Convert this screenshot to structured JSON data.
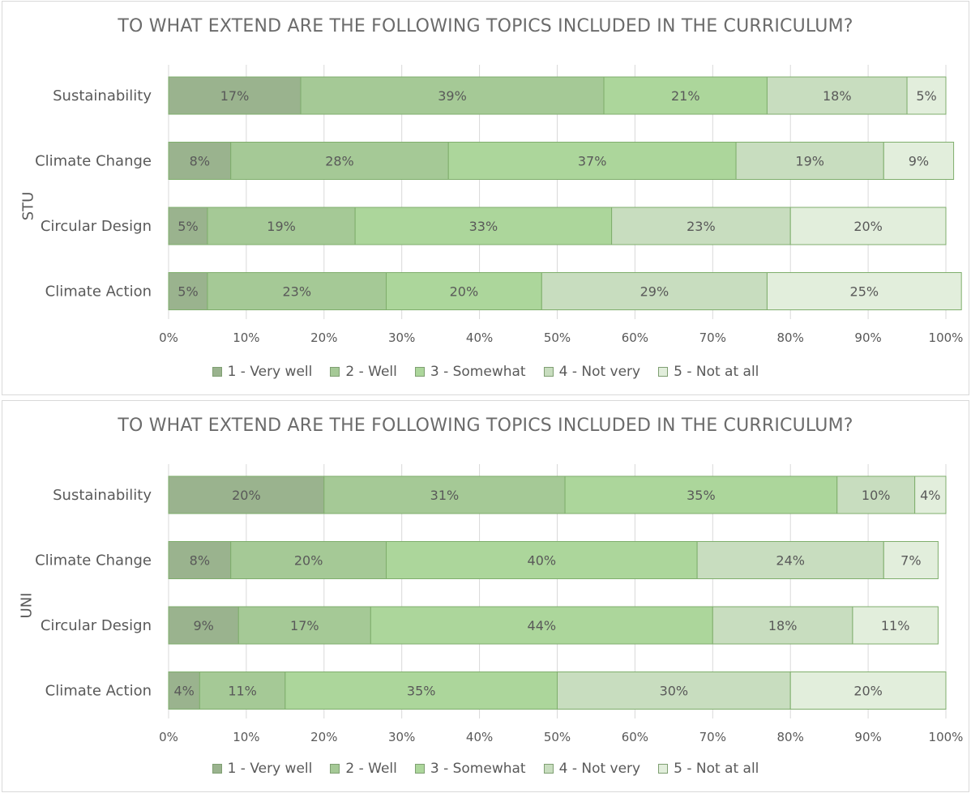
{
  "colors": [
    "#9ab38e",
    "#a5c996",
    "#acd69b",
    "#c8ddbf",
    "#e2eedc"
  ],
  "chart_data": [
    {
      "type": "bar",
      "orientation": "horizontal",
      "stacked": true,
      "title": "TO WHAT EXTEND ARE THE FOLLOWING TOPICS INCLUDED IN THE CURRICULUM?",
      "group_label": "STU",
      "categories": [
        "Sustainability",
        "Climate Change",
        "Circular Design",
        "Climate Action"
      ],
      "series": [
        {
          "name": "1 - Very well",
          "values": [
            17,
            8,
            5,
            5
          ]
        },
        {
          "name": "2 - Well",
          "values": [
            39,
            28,
            19,
            23
          ]
        },
        {
          "name": "3 - Somewhat",
          "values": [
            21,
            37,
            33,
            20
          ]
        },
        {
          "name": "4 - Not very",
          "values": [
            18,
            19,
            23,
            29
          ]
        },
        {
          "name": "5 - Not at all",
          "values": [
            5,
            9,
            20,
            25
          ]
        }
      ],
      "xlim": [
        0,
        100
      ],
      "x_ticks": [
        "0%",
        "10%",
        "20%",
        "30%",
        "40%",
        "50%",
        "60%",
        "70%",
        "80%",
        "90%",
        "100%"
      ],
      "grid": true,
      "legend": "bottom"
    },
    {
      "type": "bar",
      "orientation": "horizontal",
      "stacked": true,
      "title": "TO WHAT EXTEND ARE THE FOLLOWING TOPICS INCLUDED IN THE CURRICULUM?",
      "group_label": "UNI",
      "categories": [
        "Sustainability",
        "Climate Change",
        "Circular Design",
        "Climate Action"
      ],
      "series": [
        {
          "name": "1 - Very well",
          "values": [
            20,
            8,
            9,
            4
          ]
        },
        {
          "name": "2 - Well",
          "values": [
            31,
            20,
            17,
            11
          ]
        },
        {
          "name": "3 - Somewhat",
          "values": [
            35,
            40,
            44,
            35
          ]
        },
        {
          "name": "4 - Not very",
          "values": [
            10,
            24,
            18,
            30
          ]
        },
        {
          "name": "5 - Not at all",
          "values": [
            4,
            7,
            11,
            20
          ]
        }
      ],
      "xlim": [
        0,
        100
      ],
      "x_ticks": [
        "0%",
        "10%",
        "20%",
        "30%",
        "40%",
        "50%",
        "60%",
        "70%",
        "80%",
        "90%",
        "100%"
      ],
      "grid": true,
      "legend": "bottom"
    }
  ]
}
